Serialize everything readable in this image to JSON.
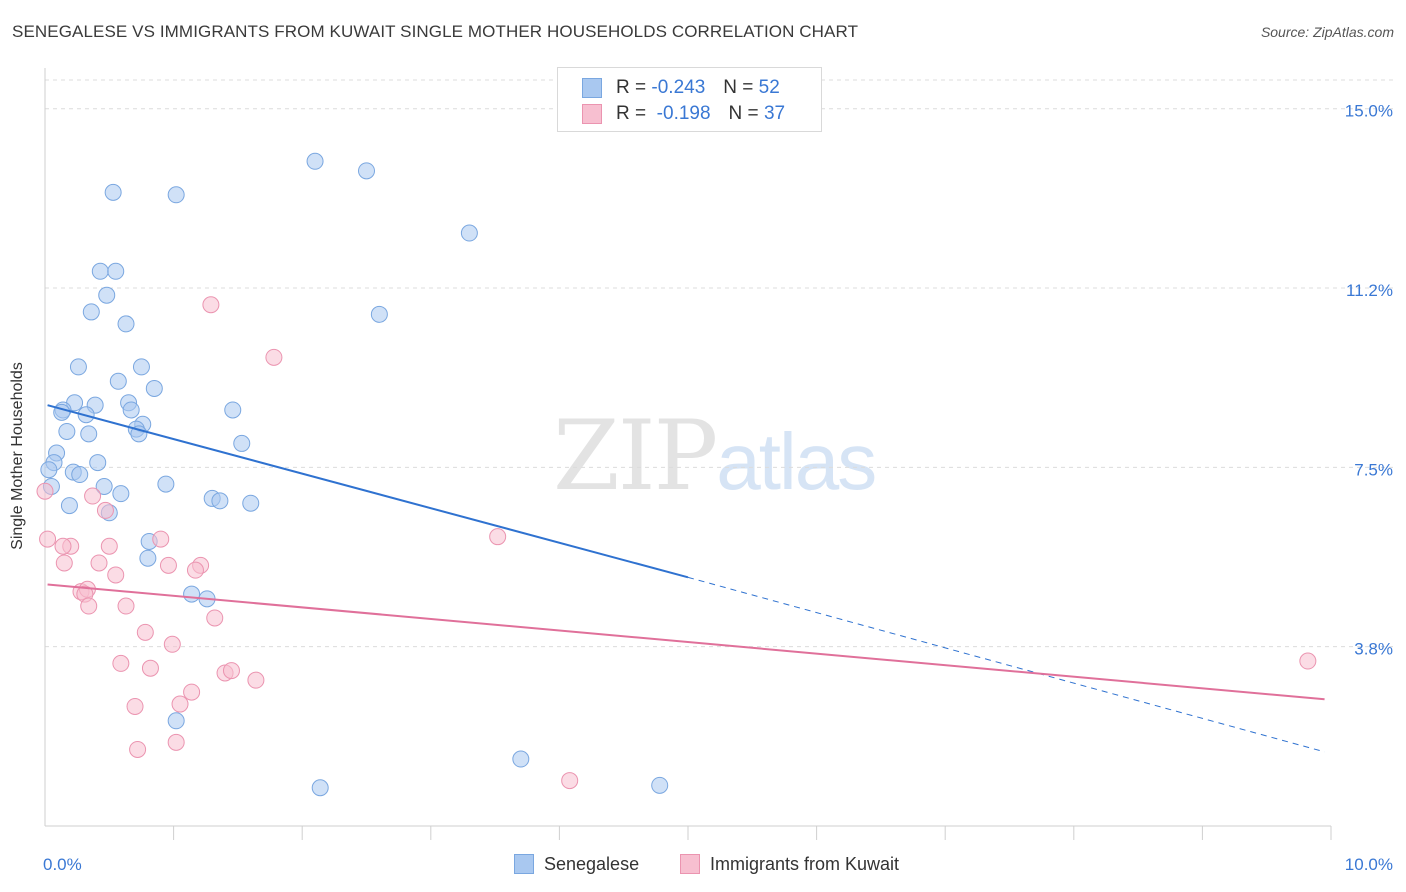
{
  "title": "SENEGALESE VS IMMIGRANTS FROM KUWAIT SINGLE MOTHER HOUSEHOLDS CORRELATION CHART",
  "source": "Source: ZipAtlas.com",
  "watermark": {
    "part1": "ZIP",
    "part2": "atlas"
  },
  "legend": {
    "rows": [
      {
        "r_label": "R = ",
        "r_value": "-0.243",
        "n_label": "N = ",
        "n_value": "52",
        "color": "#a9c8f0",
        "border": "#7aa7e0"
      },
      {
        "r_label": "R = ",
        "r_value": "-0.198",
        "n_label": "N = ",
        "n_value": "37",
        "color": "#f7bfd0",
        "border": "#eb94b0"
      }
    ]
  },
  "bottom_legend": [
    "Senegalese",
    "Immigrants from Kuwait"
  ],
  "chart_data": {
    "type": "scatter",
    "title": "SENEGALESE VS IMMIGRANTS FROM KUWAIT SINGLE MOTHER HOUSEHOLDS CORRELATION CHART",
    "xlabel": "",
    "ylabel": "Single Mother Households",
    "xlim": [
      0,
      10
    ],
    "ylim": [
      0,
      15.6
    ],
    "x_tick_labels": [
      "0.0%",
      "10.0%"
    ],
    "x_tick_label_values": [
      0,
      10
    ],
    "y_tick_labels": [
      "15.0%",
      "11.2%",
      "7.5%",
      "3.8%"
    ],
    "y_tick_values": [
      15.0,
      11.25,
      7.5,
      3.75
    ],
    "y_label_values": [
      14.96,
      11.21,
      7.46,
      3.71
    ],
    "x_minor_ticks": [
      1,
      2,
      3,
      4,
      5,
      6,
      7,
      8,
      9,
      10
    ],
    "grid": "horizontal dashed",
    "legend_position": "top-center",
    "series": [
      {
        "name": "Senegalese",
        "color": "#a9c8f0",
        "stroke": "#7aa7e0",
        "trend_color": "#2f72d0",
        "r": -0.243,
        "n": 52,
        "trend_solid": [
          [
            0.02,
            8.8
          ],
          [
            5.0,
            5.2
          ]
        ],
        "trend_dashed": [
          [
            5.0,
            5.2
          ],
          [
            9.95,
            1.55
          ]
        ],
        "points": [
          [
            2.1,
            13.9
          ],
          [
            2.5,
            13.7
          ],
          [
            0.53,
            13.25
          ],
          [
            1.02,
            13.2
          ],
          [
            3.3,
            12.4
          ],
          [
            0.43,
            11.6
          ],
          [
            0.55,
            11.6
          ],
          [
            0.48,
            11.1
          ],
          [
            0.36,
            10.75
          ],
          [
            2.6,
            10.7
          ],
          [
            0.63,
            10.5
          ],
          [
            0.26,
            9.6
          ],
          [
            0.75,
            9.6
          ],
          [
            0.57,
            9.3
          ],
          [
            0.85,
            9.15
          ],
          [
            0.23,
            8.85
          ],
          [
            0.39,
            8.8
          ],
          [
            0.65,
            8.85
          ],
          [
            0.14,
            8.7
          ],
          [
            0.13,
            8.65
          ],
          [
            0.67,
            8.7
          ],
          [
            1.46,
            8.7
          ],
          [
            0.32,
            8.6
          ],
          [
            0.76,
            8.4
          ],
          [
            0.71,
            8.3
          ],
          [
            0.17,
            8.25
          ],
          [
            0.34,
            8.2
          ],
          [
            0.73,
            8.2
          ],
          [
            1.53,
            8.0
          ],
          [
            0.09,
            7.8
          ],
          [
            0.07,
            7.6
          ],
          [
            0.41,
            7.6
          ],
          [
            0.03,
            7.45
          ],
          [
            0.22,
            7.4
          ],
          [
            0.27,
            7.35
          ],
          [
            0.94,
            7.15
          ],
          [
            0.05,
            7.1
          ],
          [
            0.46,
            7.1
          ],
          [
            0.59,
            6.95
          ],
          [
            1.3,
            6.85
          ],
          [
            1.36,
            6.8
          ],
          [
            1.6,
            6.75
          ],
          [
            0.19,
            6.7
          ],
          [
            0.5,
            6.55
          ],
          [
            0.81,
            5.95
          ],
          [
            0.8,
            5.6
          ],
          [
            1.14,
            4.85
          ],
          [
            1.26,
            4.75
          ],
          [
            1.02,
            2.2
          ],
          [
            3.7,
            1.4
          ],
          [
            2.14,
            0.8
          ],
          [
            4.78,
            0.85
          ]
        ]
      },
      {
        "name": "Immigrants from Kuwait",
        "color": "#f7bfd0",
        "stroke": "#eb94b0",
        "trend_color": "#e0709a",
        "r": -0.198,
        "n": 37,
        "trend_solid": [
          [
            0.02,
            5.05
          ],
          [
            9.95,
            2.65
          ]
        ],
        "points": [
          [
            1.29,
            10.9
          ],
          [
            1.78,
            9.8
          ],
          [
            3.52,
            6.05
          ],
          [
            9.82,
            3.45
          ],
          [
            0.0,
            7.0
          ],
          [
            0.37,
            6.9
          ],
          [
            0.47,
            6.6
          ],
          [
            0.02,
            6.0
          ],
          [
            0.9,
            6.0
          ],
          [
            0.2,
            5.85
          ],
          [
            0.5,
            5.85
          ],
          [
            0.14,
            5.85
          ],
          [
            0.15,
            5.5
          ],
          [
            0.42,
            5.5
          ],
          [
            0.96,
            5.45
          ],
          [
            1.21,
            5.45
          ],
          [
            1.17,
            5.35
          ],
          [
            0.55,
            5.25
          ],
          [
            0.28,
            4.9
          ],
          [
            0.33,
            4.95
          ],
          [
            0.31,
            4.85
          ],
          [
            0.34,
            4.6
          ],
          [
            0.63,
            4.6
          ],
          [
            1.32,
            4.35
          ],
          [
            0.78,
            4.05
          ],
          [
            0.99,
            3.8
          ],
          [
            0.59,
            3.4
          ],
          [
            0.82,
            3.3
          ],
          [
            1.4,
            3.2
          ],
          [
            1.45,
            3.25
          ],
          [
            1.64,
            3.05
          ],
          [
            1.14,
            2.8
          ],
          [
            1.05,
            2.55
          ],
          [
            0.7,
            2.5
          ],
          [
            0.72,
            1.6
          ],
          [
            1.02,
            1.75
          ],
          [
            4.08,
            0.95
          ]
        ]
      }
    ]
  }
}
